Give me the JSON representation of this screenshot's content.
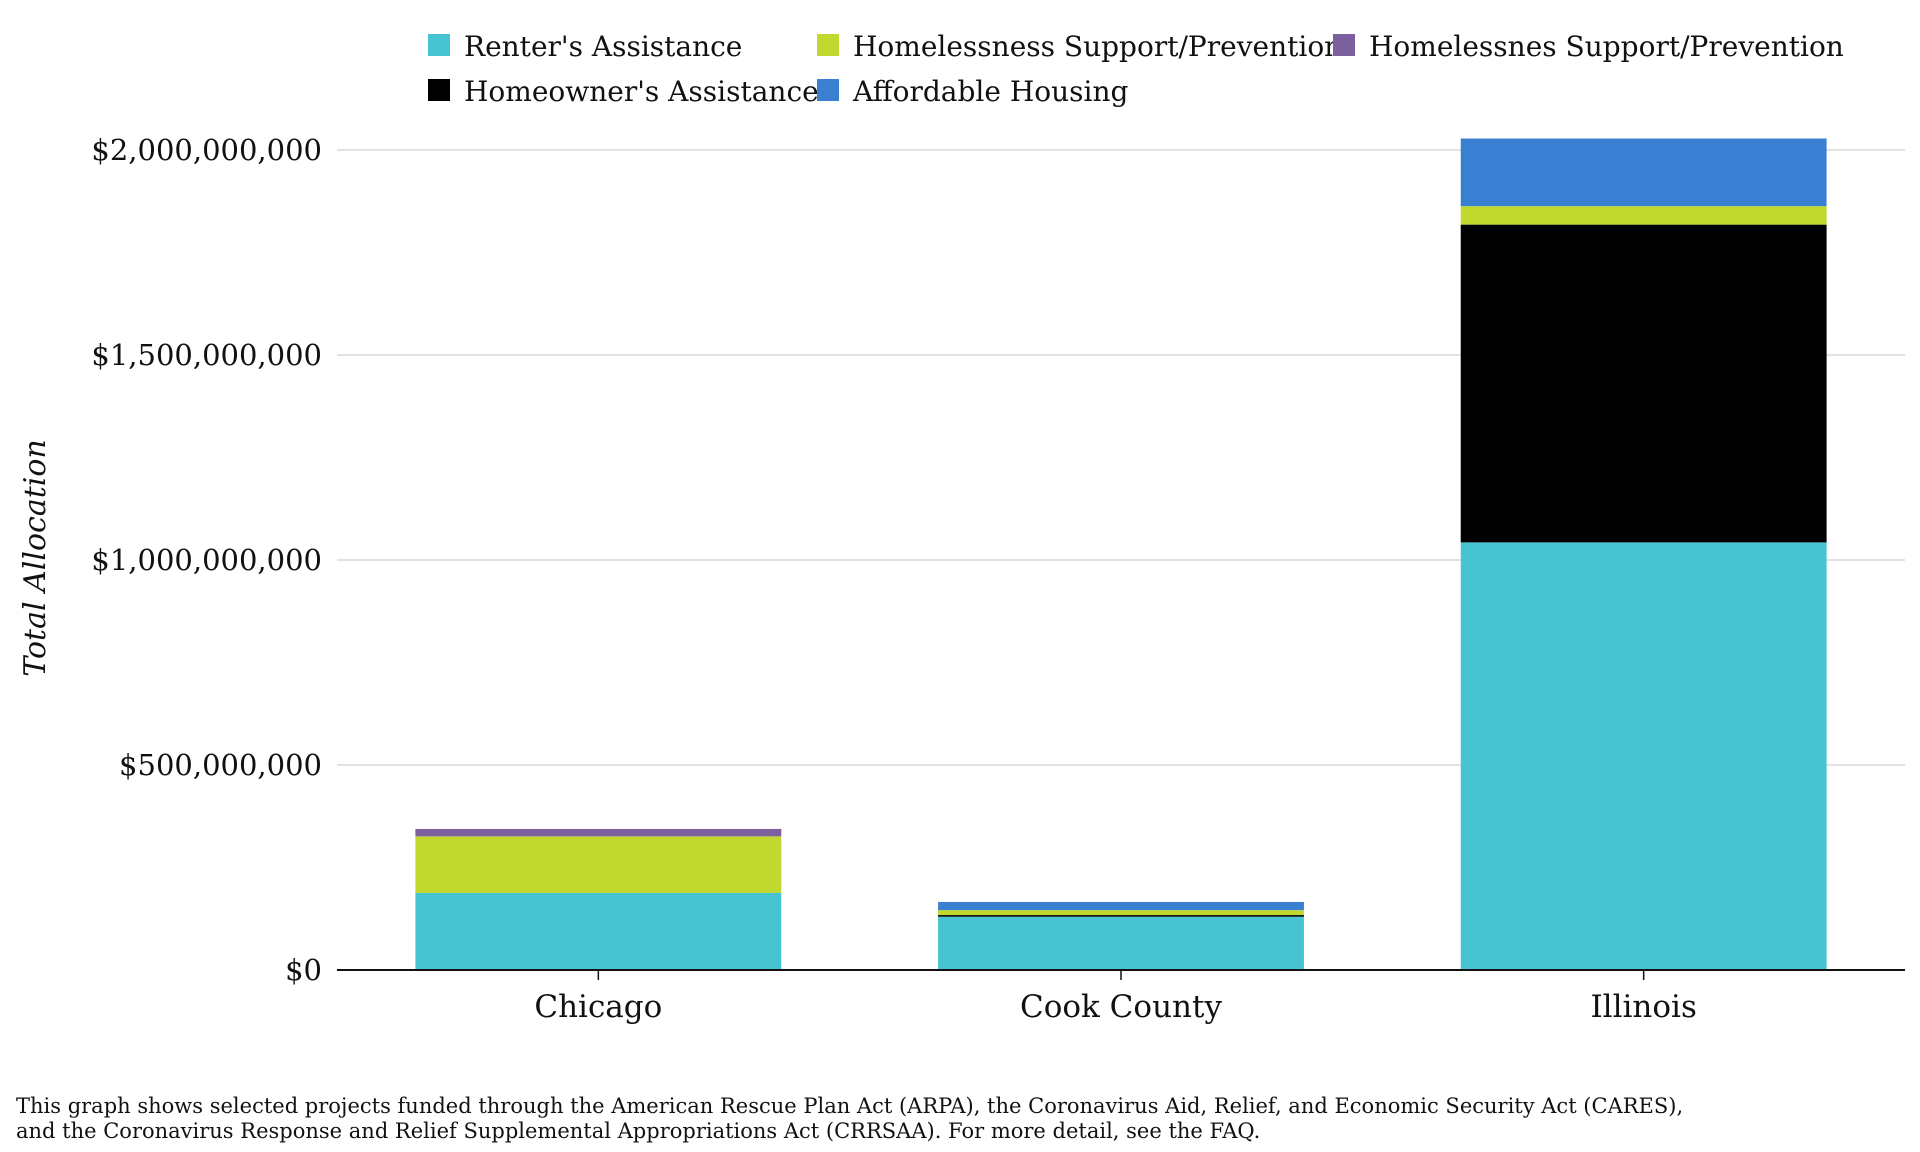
{
  "chart_data": {
    "type": "bar",
    "stacked": true,
    "title": "",
    "xlabel": "",
    "ylabel": "Total Allocation",
    "ylim": [
      0,
      2000000000
    ],
    "yticks": [
      0,
      500000000,
      1000000000,
      1500000000,
      2000000000
    ],
    "ytick_labels": [
      "$0",
      "$500,000,000",
      "$1,000,000,000",
      "$1,500,000,000",
      "$2,000,000,000"
    ],
    "grid": true,
    "legend_position": "top",
    "categories": [
      "Chicago",
      "Cook County",
      "Illinois"
    ],
    "series": [
      {
        "name": "Renter's Assistance",
        "color": "#47c3d2",
        "values": [
          188000000,
          130000000,
          1043000000
        ]
      },
      {
        "name": "Homeowner's Assistance",
        "color": "#000000",
        "values": [
          0,
          4000000,
          775000000
        ]
      },
      {
        "name": "Homelessness Support/Prevention",
        "color": "#c1d82f",
        "values": [
          138000000,
          12000000,
          45000000
        ]
      },
      {
        "name": "Homelessnes Support/Prevention",
        "color": "#7b5f9e",
        "values": [
          18000000,
          0,
          0
        ]
      },
      {
        "name": "Affordable Housing",
        "color": "#3a80d2",
        "values": [
          0,
          20000000,
          165000000
        ]
      }
    ]
  },
  "legend_rows": [
    [
      "Renter's Assistance",
      "Homelessness Support/Prevention",
      "Homelessnes Support/Prevention"
    ],
    [
      "Homeowner's Assistance",
      "Affordable Housing"
    ]
  ],
  "footnote": {
    "line1": "This graph shows selected projects funded through the American Rescue Plan Act (ARPA), the Coronavirus Aid, Relief, and Economic Security Act (CARES),",
    "line2": "and the Coronavirus Response and Relief Supplemental Appropriations Act (CRRSAA). For more detail, see the FAQ."
  }
}
